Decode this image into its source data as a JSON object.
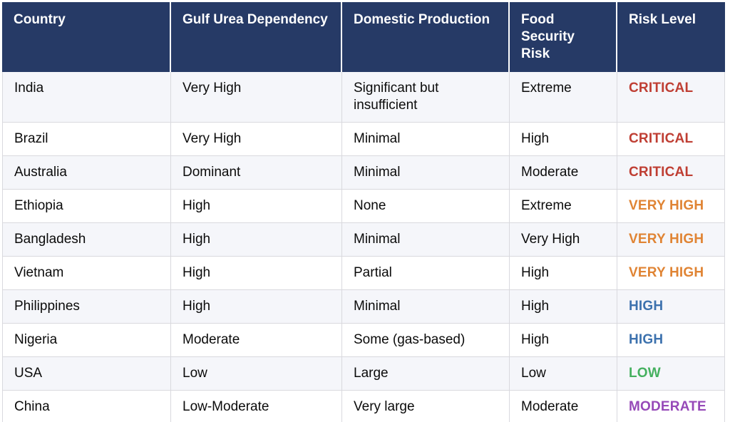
{
  "chart_data": {
    "type": "table",
    "columns": [
      {
        "key": "country",
        "label": "Country"
      },
      {
        "key": "gulf_urea_dependency",
        "label": "Gulf Urea Dependency"
      },
      {
        "key": "domestic_production",
        "label": "Domestic Production"
      },
      {
        "key": "food_security_risk",
        "label": "Food Security Risk"
      },
      {
        "key": "risk_level",
        "label": "Risk Level"
      }
    ],
    "rows": [
      {
        "country": "India",
        "gulf_urea_dependency": "Very High",
        "domestic_production": "Significant but insufficient",
        "food_security_risk": "Extreme",
        "risk_level": "CRITICAL"
      },
      {
        "country": "Brazil",
        "gulf_urea_dependency": "Very High",
        "domestic_production": "Minimal",
        "food_security_risk": "High",
        "risk_level": "CRITICAL"
      },
      {
        "country": "Australia",
        "gulf_urea_dependency": "Dominant",
        "domestic_production": "Minimal",
        "food_security_risk": "Moderate",
        "risk_level": "CRITICAL"
      },
      {
        "country": "Ethiopia",
        "gulf_urea_dependency": "High",
        "domestic_production": "None",
        "food_security_risk": "Extreme",
        "risk_level": "VERY HIGH"
      },
      {
        "country": "Bangladesh",
        "gulf_urea_dependency": "High",
        "domestic_production": "Minimal",
        "food_security_risk": "Very High",
        "risk_level": "VERY HIGH"
      },
      {
        "country": "Vietnam",
        "gulf_urea_dependency": "High",
        "domestic_production": "Partial",
        "food_security_risk": "High",
        "risk_level": "VERY HIGH"
      },
      {
        "country": "Philippines",
        "gulf_urea_dependency": "High",
        "domestic_production": "Minimal",
        "food_security_risk": "High",
        "risk_level": "HIGH"
      },
      {
        "country": "Nigeria",
        "gulf_urea_dependency": "Moderate",
        "domestic_production": "Some (gas-based)",
        "food_security_risk": "High",
        "risk_level": "HIGH"
      },
      {
        "country": "USA",
        "gulf_urea_dependency": "Low",
        "domestic_production": "Large",
        "food_security_risk": "Low",
        "risk_level": "LOW"
      },
      {
        "country": "China",
        "gulf_urea_dependency": "Low-Moderate",
        "domestic_production": "Very large",
        "food_security_risk": "Moderate",
        "risk_level": "MODERATE"
      }
    ]
  },
  "risk_level_colors": {
    "CRITICAL": "#bf3e33",
    "VERY HIGH": "#e08434",
    "HIGH": "#3d72ae",
    "LOW": "#45b05f",
    "MODERATE": "#9649b8"
  },
  "colors": {
    "header_background": "#263a66",
    "header_text": "#ffffff",
    "row_background": "#ffffff",
    "row_alternate_background": "#f5f6fa",
    "cell_border": "#d9d9de",
    "body_text": "#0b0b0b"
  }
}
